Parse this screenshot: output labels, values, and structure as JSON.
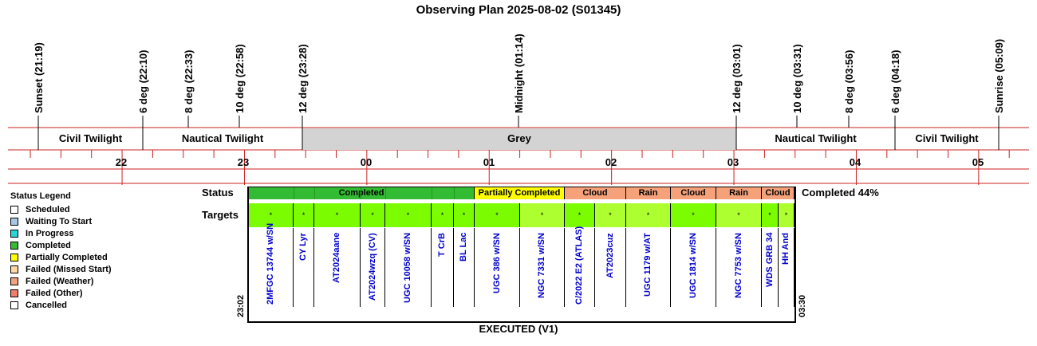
{
  "title": "Observing Plan 2025-08-02 (S01345)",
  "events": [
    {
      "label": "Sunset (21:19)"
    },
    {
      "label": "6 deg (22:10)"
    },
    {
      "label": "8 deg (22:33)"
    },
    {
      "label": "10 deg (22:58)"
    },
    {
      "label": "12 deg (23:28)"
    },
    {
      "label": "Midnight (01:14)"
    },
    {
      "label": "12 deg (03:01)"
    },
    {
      "label": "10 deg (03:31)"
    },
    {
      "label": "8 deg (03:56)"
    },
    {
      "label": "6 deg (04:18)"
    },
    {
      "label": "Sunrise (05:09)"
    }
  ],
  "bands": [
    {
      "label": "Civil Twilight"
    },
    {
      "label": "Nautical Twilight"
    },
    {
      "label": "Grey"
    },
    {
      "label": "Nautical Twilight"
    },
    {
      "label": "Civil Twilight"
    }
  ],
  "hours": [
    "22",
    "23",
    "00",
    "01",
    "02",
    "03",
    "04",
    "05"
  ],
  "legend": {
    "title": "Status Legend",
    "items": [
      {
        "label": "Scheduled",
        "color": "#ffffff"
      },
      {
        "label": "Waiting To Start",
        "color": "#a7c7e7"
      },
      {
        "label": "In Progress",
        "color": "#26d7d7"
      },
      {
        "label": "Completed",
        "color": "#33bb33"
      },
      {
        "label": "Partially Completed",
        "color": "#ffff00"
      },
      {
        "label": "Failed (Missed Start)",
        "color": "#ffd8a8"
      },
      {
        "label": "Failed (Weather)",
        "color": "#f5a27a"
      },
      {
        "label": "Failed (Other)",
        "color": "#f47c6c"
      },
      {
        "label": "Cancelled",
        "color": "#ffffff"
      }
    ]
  },
  "status_row_label": "Status",
  "targets_row_label": "Targets",
  "status_segments": [
    {
      "label": "Completed",
      "color": "#33bb33"
    },
    {
      "label": "Partially Completed",
      "color": "#ffff00"
    },
    {
      "label": "Cloud",
      "color": "#f5a27a"
    },
    {
      "label": "Rain",
      "color": "#f5a27a"
    },
    {
      "label": "Cloud",
      "color": "#f5a27a"
    },
    {
      "label": "Rain",
      "color": "#f5a27a"
    },
    {
      "label": "Cloud",
      "color": "#f5a27a"
    }
  ],
  "completion_text": "Completed 44%",
  "targets": [
    {
      "name": "2MFGC 13744 w/SN",
      "marker": "*",
      "color": "#7cfc00"
    },
    {
      "name": "CY Lyr",
      "marker": "*",
      "color": "#7cfc00"
    },
    {
      "name": "AT2024aane",
      "marker": "*",
      "color": "#7cfc00"
    },
    {
      "name": "AT2024wzq (CV)",
      "marker": "*",
      "color": "#7cfc00"
    },
    {
      "name": "UGC 10058 w/SN",
      "marker": "*",
      "color": "#7cfc00"
    },
    {
      "name": "T CrB",
      "marker": "*",
      "color": "#7cfc00"
    },
    {
      "name": "BL Lac",
      "marker": "*",
      "color": "#7cfc00"
    },
    {
      "name": "UGC 386 w/SN",
      "marker": "*",
      "color": "#7cfc00"
    },
    {
      "name": "NGC 7331 w/SN",
      "marker": "*",
      "color": "#adff2f"
    },
    {
      "name": "C/2022 E2 (ATLAS)",
      "marker": "*",
      "color": "#7cfc00"
    },
    {
      "name": "AT2023cuz",
      "marker": "*",
      "color": "#adff2f"
    },
    {
      "name": "UGC 1179 w/AT",
      "marker": "*",
      "color": "#adff2f"
    },
    {
      "name": "UGC 1814 w/SN",
      "marker": "*",
      "color": "#7cfc00"
    },
    {
      "name": "NGC 7753 w/SN",
      "marker": "*",
      "color": "#adff2f"
    },
    {
      "name": "WDS GRB 34",
      "marker": "*",
      "color": "#7cfc00"
    },
    {
      "name": "HH And",
      "marker": "*",
      "color": "#adff2f"
    }
  ],
  "start_time": "23:02",
  "end_time": "03:30",
  "footer": "EXECUTED (V1)"
}
